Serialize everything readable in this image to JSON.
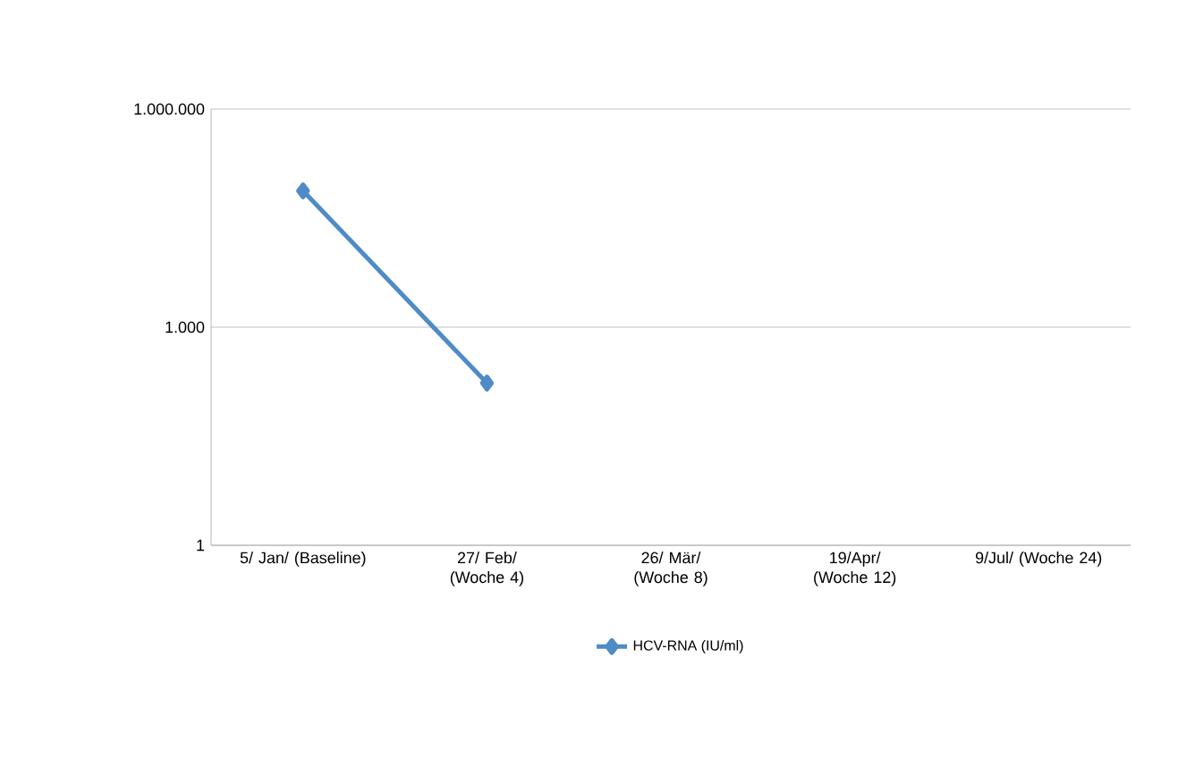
{
  "chart_data": {
    "type": "line",
    "categories": [
      "5/ Jan/ (Baseline)",
      "27/ Feb/ (Woche 4)",
      "26/ Mär/ (Woche 8)",
      "19/Apr/ (Woche 12)",
      "9/Jul/ (Woche 24)"
    ],
    "series": [
      {
        "name": "HCV-RNA (IU/ml)",
        "color": "#4f8bc6",
        "values": [
          75000,
          170,
          null,
          null,
          null
        ]
      }
    ],
    "log": "y",
    "ylim": [
      1,
      1000000
    ],
    "yticks": [
      1,
      {
        "value": 1000,
        "label": "1.000"
      },
      {
        "value": 1000000,
        "label": "1.000.000"
      }
    ],
    "grid": "y",
    "legend": "bottom",
    "marker": "diamond",
    "line_style": "solid"
  }
}
